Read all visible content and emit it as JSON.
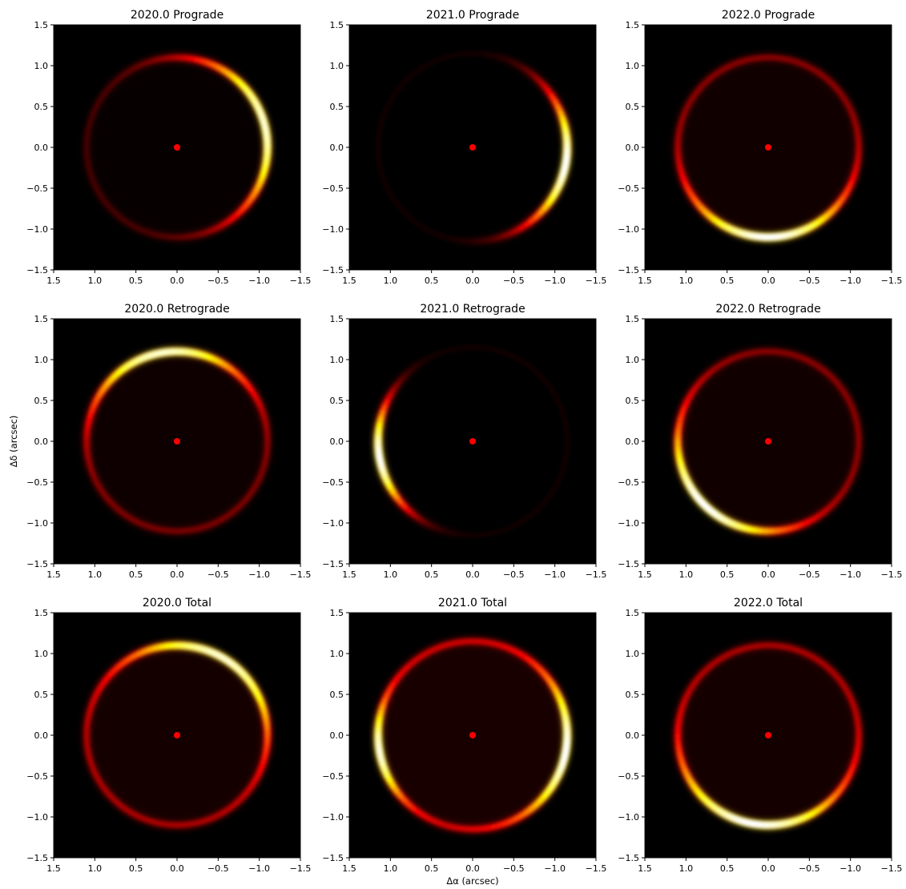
{
  "chart_data": {
    "type": "heatmap",
    "xlabel": "Δα (arcsec)",
    "ylabel": "Δδ (arcsec)",
    "xlim": [
      1.5,
      -1.5
    ],
    "ylim": [
      -1.5,
      1.5
    ],
    "x_ticks": [
      "1.5",
      "1.0",
      "0.5",
      "0.0",
      "−0.5",
      "−1.0",
      "−1.5"
    ],
    "y_ticks": [
      "1.5",
      "1.0",
      "0.5",
      "0.0",
      "−0.5",
      "−1.0",
      "−1.5"
    ],
    "colormap": "hot",
    "background": "#000000",
    "marker_color": "#ff0000",
    "marker": {
      "x": 0.0,
      "y": 0.0
    },
    "panels": [
      {
        "title": "2020.0 Prograde",
        "ring_radius": 1.1,
        "bright_angle_deg": 165,
        "width_deg": 60,
        "peak": 0.95,
        "base": 0.1,
        "secondary": null
      },
      {
        "title": "2021.0 Prograde",
        "ring_radius": 1.15,
        "bright_angle_deg": 190,
        "width_deg": 45,
        "peak": 1.0,
        "base": 0.02,
        "secondary": null
      },
      {
        "title": "2022.0 Prograde",
        "ring_radius": 1.1,
        "bright_angle_deg": 270,
        "width_deg": 55,
        "peak": 1.0,
        "base": 0.2,
        "secondary": null
      },
      {
        "title": "2020.0 Retrograde",
        "ring_radius": 1.1,
        "bright_angle_deg": 80,
        "width_deg": 55,
        "peak": 0.95,
        "base": 0.18,
        "secondary": null
      },
      {
        "title": "2021.0 Retrograde",
        "ring_radius": 1.15,
        "bright_angle_deg": 350,
        "width_deg": 35,
        "peak": 1.0,
        "base": 0.02,
        "secondary": null
      },
      {
        "title": "2022.0 Retrograde",
        "ring_radius": 1.1,
        "bright_angle_deg": 315,
        "width_deg": 55,
        "peak": 1.0,
        "base": 0.2,
        "secondary": null
      },
      {
        "title": "2020.0 Total",
        "ring_radius": 1.1,
        "bright_angle_deg": 120,
        "width_deg": 60,
        "peak": 0.95,
        "base": 0.25,
        "secondary": null
      },
      {
        "title": "2021.0 Total",
        "ring_radius": 1.15,
        "bright_angle_deg": 190,
        "width_deg": 45,
        "peak": 1.0,
        "base": 0.3,
        "secondary": 350
      },
      {
        "title": "2022.0 Total",
        "ring_radius": 1.1,
        "bright_angle_deg": 280,
        "width_deg": 60,
        "peak": 1.0,
        "base": 0.25,
        "secondary": null
      }
    ]
  }
}
